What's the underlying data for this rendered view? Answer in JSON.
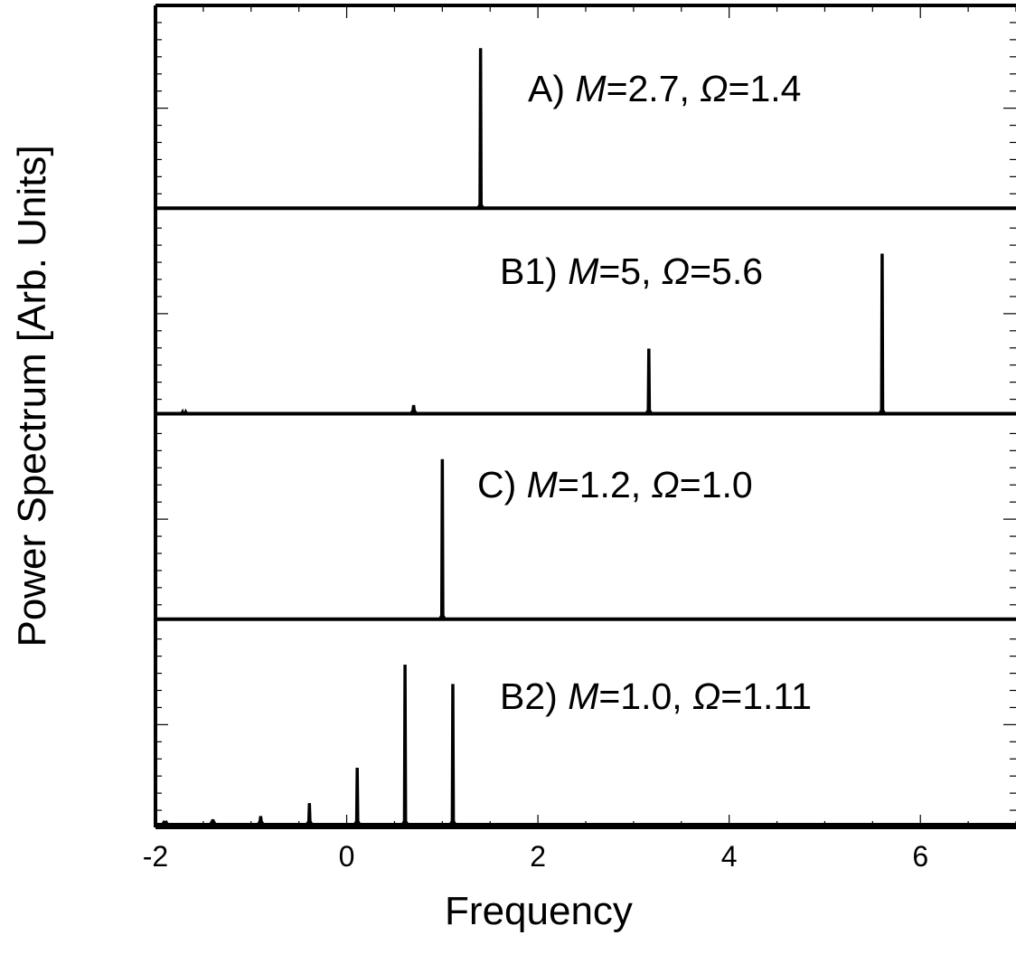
{
  "chart_data": {
    "type": "line",
    "xlabel": "Frequency",
    "ylabel": "Power Spectrum [Arb. Units]",
    "xlim": [
      -2,
      7
    ],
    "xticks": [
      -2,
      0,
      2,
      4,
      6
    ],
    "grid": false,
    "legend": "none",
    "panels": [
      {
        "label_prefix": "A) ",
        "M_symbol": "M",
        "M_value": "=2.7, ",
        "Omega_symbol": "Ω",
        "Omega_value": "=1.4",
        "ylim": [
          0,
          1
        ],
        "peaks": [
          {
            "x": 1.4,
            "y": 0.99
          }
        ]
      },
      {
        "label_prefix": "B1) ",
        "M_symbol": "M",
        "M_value": "=5, ",
        "Omega_symbol": "Ω",
        "Omega_value": "=5.6",
        "ylim": [
          0,
          1
        ],
        "peaks": [
          {
            "x": -1.7,
            "y": 0.01
          },
          {
            "x": 0.7,
            "y": 0.05
          },
          {
            "x": 3.16,
            "y": 0.4
          },
          {
            "x": 5.6,
            "y": 0.99
          }
        ]
      },
      {
        "label_prefix": "C) ",
        "M_symbol": "M",
        "M_value": "=1.2, ",
        "Omega_symbol": "Ω",
        "Omega_value": "=1.0",
        "ylim": [
          0,
          1
        ],
        "peaks": [
          {
            "x": 1.0,
            "y": 0.99
          }
        ]
      },
      {
        "label_prefix": "B2) ",
        "M_symbol": "M",
        "M_value": "=1.0, ",
        "Omega_symbol": "Ω",
        "Omega_value": "=1.11",
        "ylim": [
          0,
          1
        ],
        "peaks": [
          {
            "x": -1.9,
            "y": 0.02
          },
          {
            "x": -1.4,
            "y": 0.03
          },
          {
            "x": -0.9,
            "y": 0.05
          },
          {
            "x": -0.39,
            "y": 0.13
          },
          {
            "x": 0.11,
            "y": 0.35
          },
          {
            "x": 0.61,
            "y": 0.99
          },
          {
            "x": 1.11,
            "y": 0.87
          }
        ]
      }
    ]
  }
}
